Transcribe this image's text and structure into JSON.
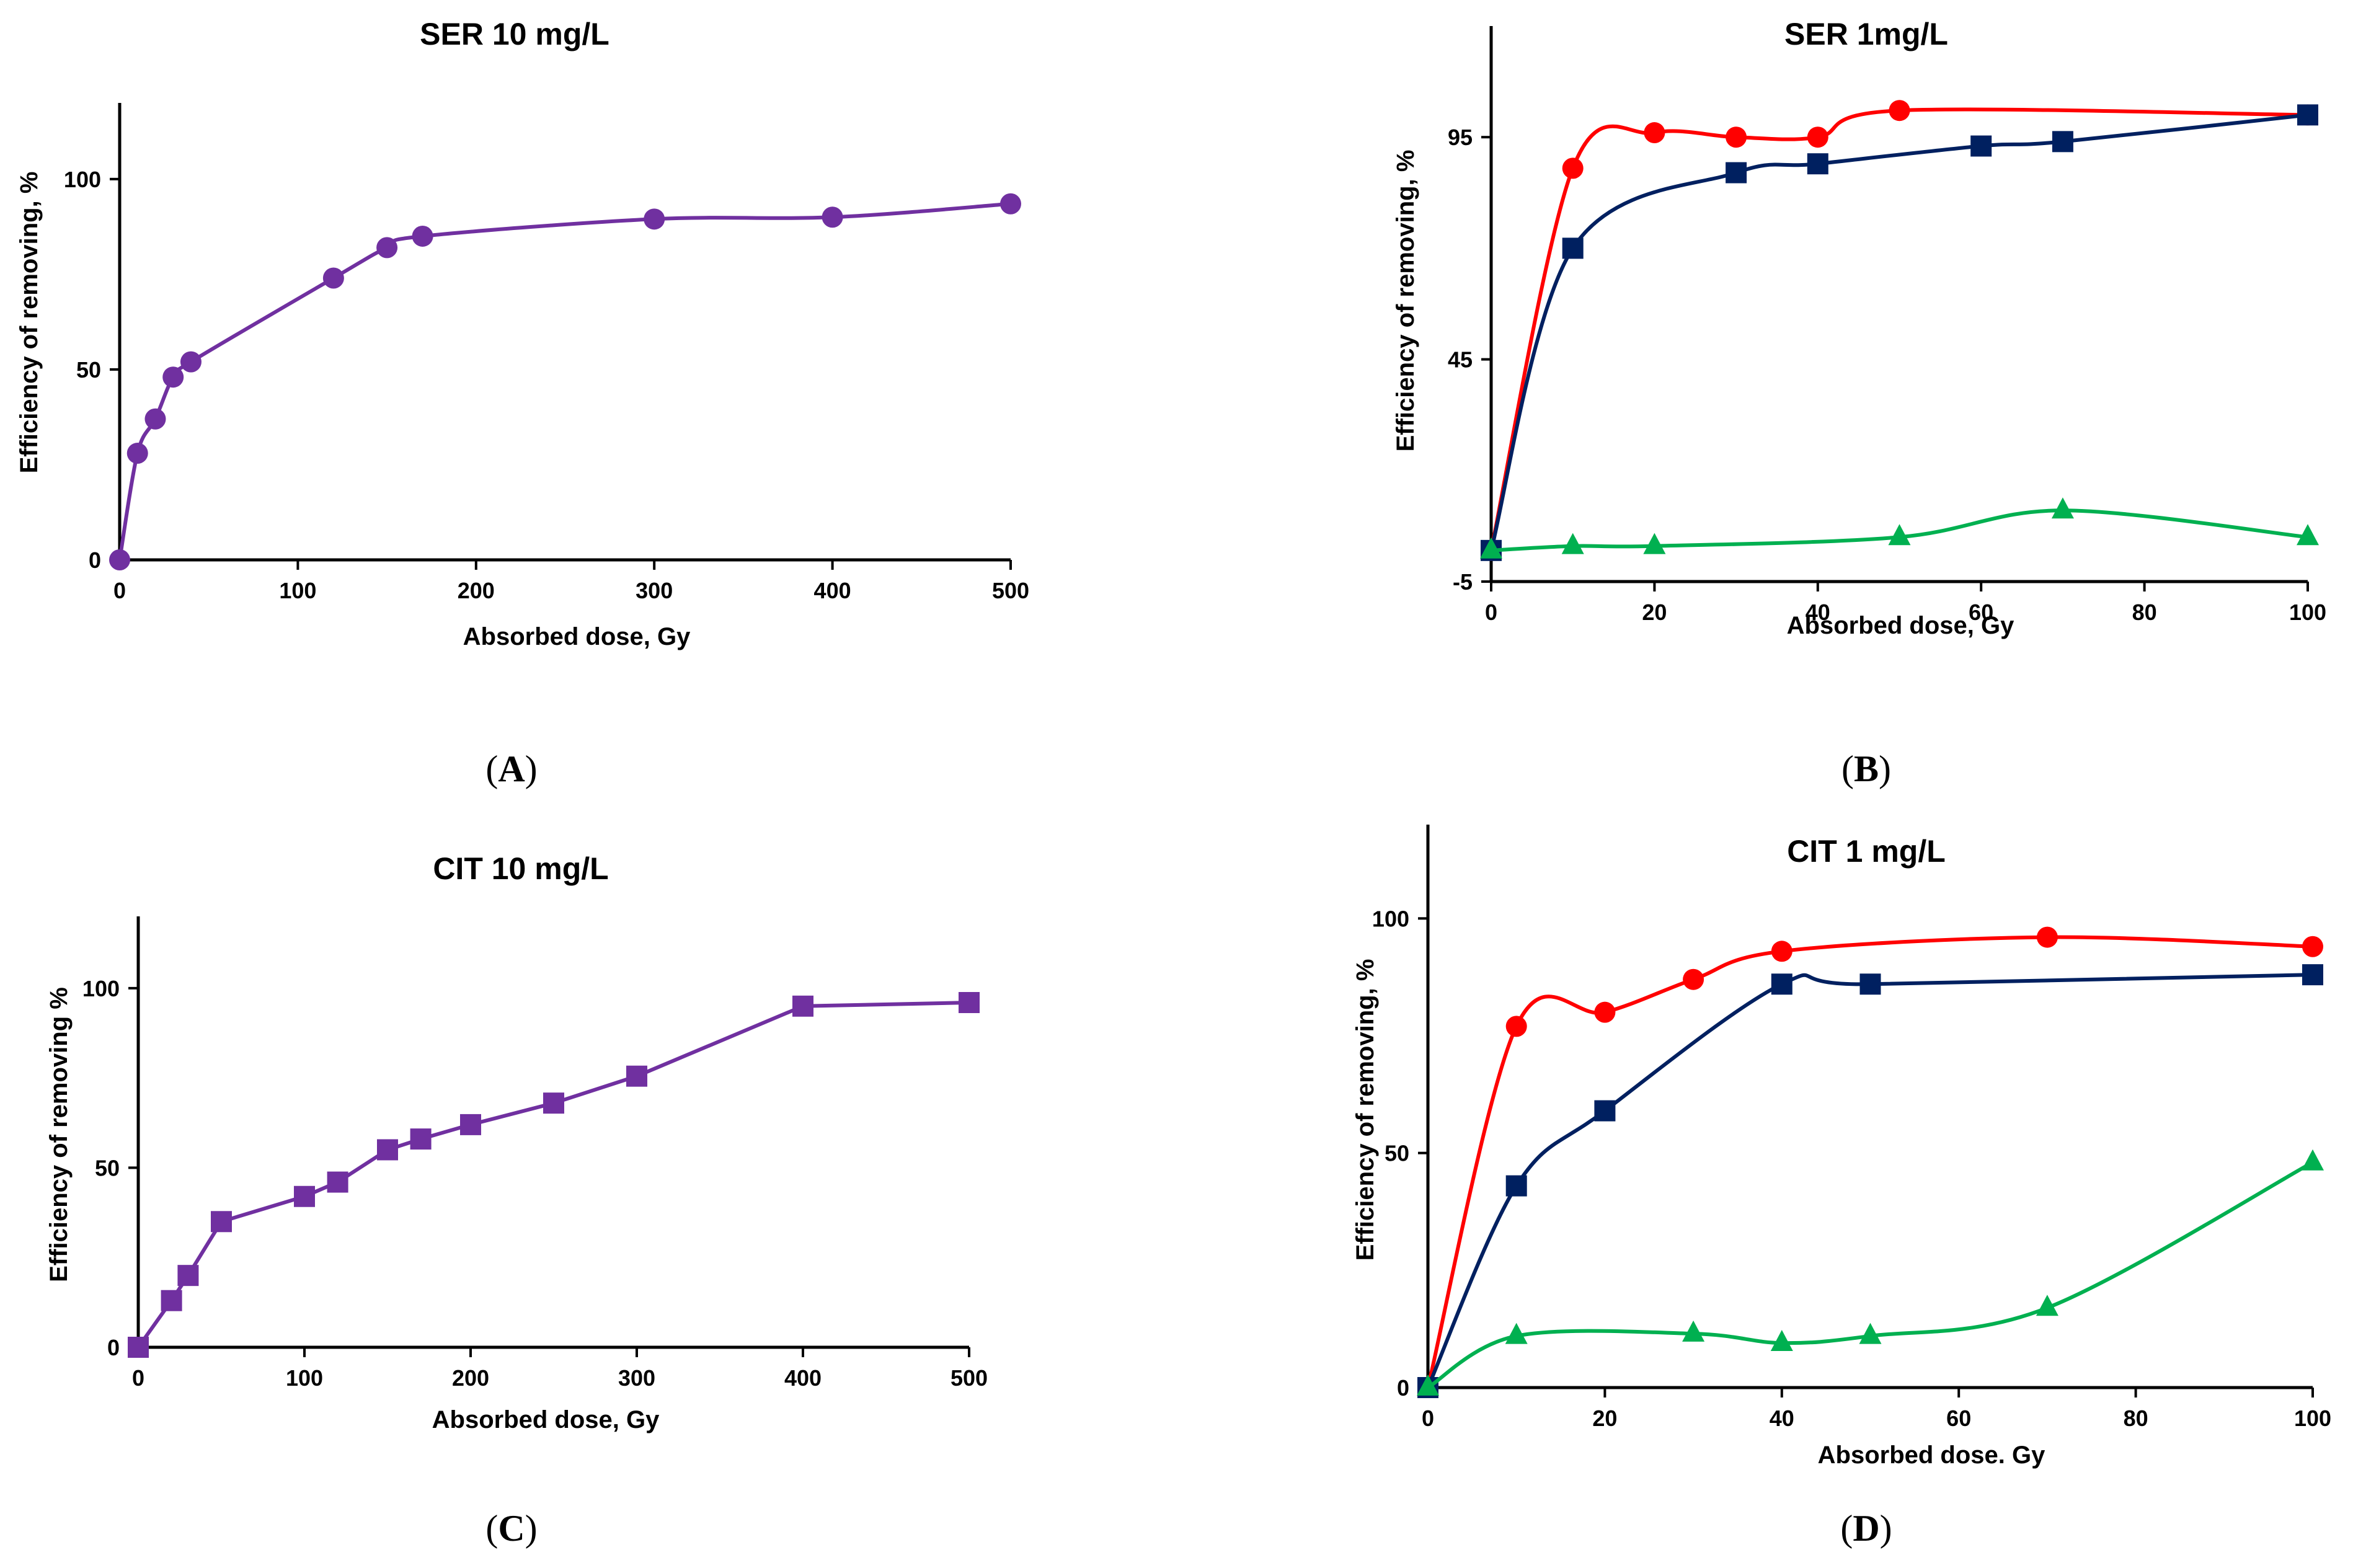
{
  "chart_data": [
    {
      "panel": "A",
      "type": "line",
      "title": "SER 10 mg/L",
      "xlabel": "Absorbed dose, Gy",
      "ylabel": "Efficiency  of removing, %",
      "xlim": [
        0,
        500
      ],
      "ylim": [
        0,
        120
      ],
      "xticks": [
        0,
        100,
        200,
        300,
        400,
        500
      ],
      "yticks": [
        0,
        50,
        100
      ],
      "series": [
        {
          "name": "SER 10 mg/L",
          "color": "#7030a0",
          "marker": "circle",
          "x": [
            0,
            10,
            20,
            30,
            40,
            120,
            150,
            170,
            300,
            400,
            500
          ],
          "y": [
            0,
            28,
            37,
            48,
            52,
            74,
            82,
            85,
            89.5,
            90,
            93.5
          ]
        }
      ]
    },
    {
      "panel": "B",
      "type": "line",
      "title": "SER 1mg/L",
      "xlabel": "Absorbed dose, Gy",
      "ylabel": "Efficiency of removing, %",
      "xlim": [
        0,
        100
      ],
      "ylim": [
        -5,
        120
      ],
      "xticks": [
        0,
        20,
        40,
        60,
        80,
        100
      ],
      "yticks": [
        -5,
        45,
        95
      ],
      "series": [
        {
          "name": "red",
          "color": "#ff0000",
          "marker": "circle",
          "x": [
            0,
            10,
            20,
            30,
            40,
            50,
            100
          ],
          "y": [
            2,
            88,
            96,
            95,
            95,
            101,
            100
          ]
        },
        {
          "name": "navy",
          "color": "#002060",
          "marker": "square",
          "x": [
            0,
            10,
            30,
            40,
            60,
            70,
            100
          ],
          "y": [
            2,
            70,
            87,
            89,
            93,
            94,
            100
          ]
        },
        {
          "name": "green",
          "color": "#00b050",
          "marker": "triangle",
          "x": [
            0,
            10,
            20,
            50,
            70,
            100
          ],
          "y": [
            2,
            3,
            3,
            5,
            11,
            5
          ]
        }
      ]
    },
    {
      "panel": "C",
      "type": "line",
      "title": "CIT 10 mg/L",
      "xlabel": "Absorbed dose, Gy",
      "ylabel": "Efficiency of removing %",
      "xlim": [
        0,
        500
      ],
      "ylim": [
        0,
        120
      ],
      "xticks": [
        0,
        100,
        200,
        300,
        400,
        500
      ],
      "yticks": [
        0,
        50,
        100
      ],
      "series": [
        {
          "name": "CIT 10 mg/L",
          "color": "#7030a0",
          "marker": "square",
          "x": [
            0,
            20,
            30,
            50,
            100,
            120,
            150,
            170,
            200,
            250,
            300,
            400,
            500
          ],
          "y": [
            0,
            13,
            20,
            35,
            42,
            46,
            55,
            58,
            62,
            68,
            75.5,
            95,
            96
          ]
        }
      ]
    },
    {
      "panel": "D",
      "type": "line",
      "title": "CIT 1 mg/L",
      "xlabel": "Absorbed dose. Gy",
      "ylabel": "Efficiency of removing, %",
      "xlim": [
        0,
        100
      ],
      "ylim": [
        0,
        120
      ],
      "xticks": [
        0,
        20,
        40,
        60,
        80,
        100
      ],
      "yticks": [
        0,
        50,
        100
      ],
      "series": [
        {
          "name": "red",
          "color": "#ff0000",
          "marker": "circle",
          "x": [
            0,
            10,
            20,
            30,
            40,
            70,
            100
          ],
          "y": [
            0,
            77,
            80,
            87,
            93,
            96,
            94
          ]
        },
        {
          "name": "navy",
          "color": "#002060",
          "marker": "square",
          "x": [
            0,
            10,
            20,
            40,
            50,
            100
          ],
          "y": [
            0,
            43,
            59,
            86,
            86,
            88
          ]
        },
        {
          "name": "green",
          "color": "#00b050",
          "marker": "triangle",
          "x": [
            0,
            10,
            30,
            40,
            50,
            70,
            100
          ],
          "y": [
            0,
            11,
            11.5,
            9.5,
            11,
            17,
            48
          ]
        }
      ]
    }
  ],
  "panel_labels": [
    "A",
    "B",
    "C",
    "D"
  ]
}
